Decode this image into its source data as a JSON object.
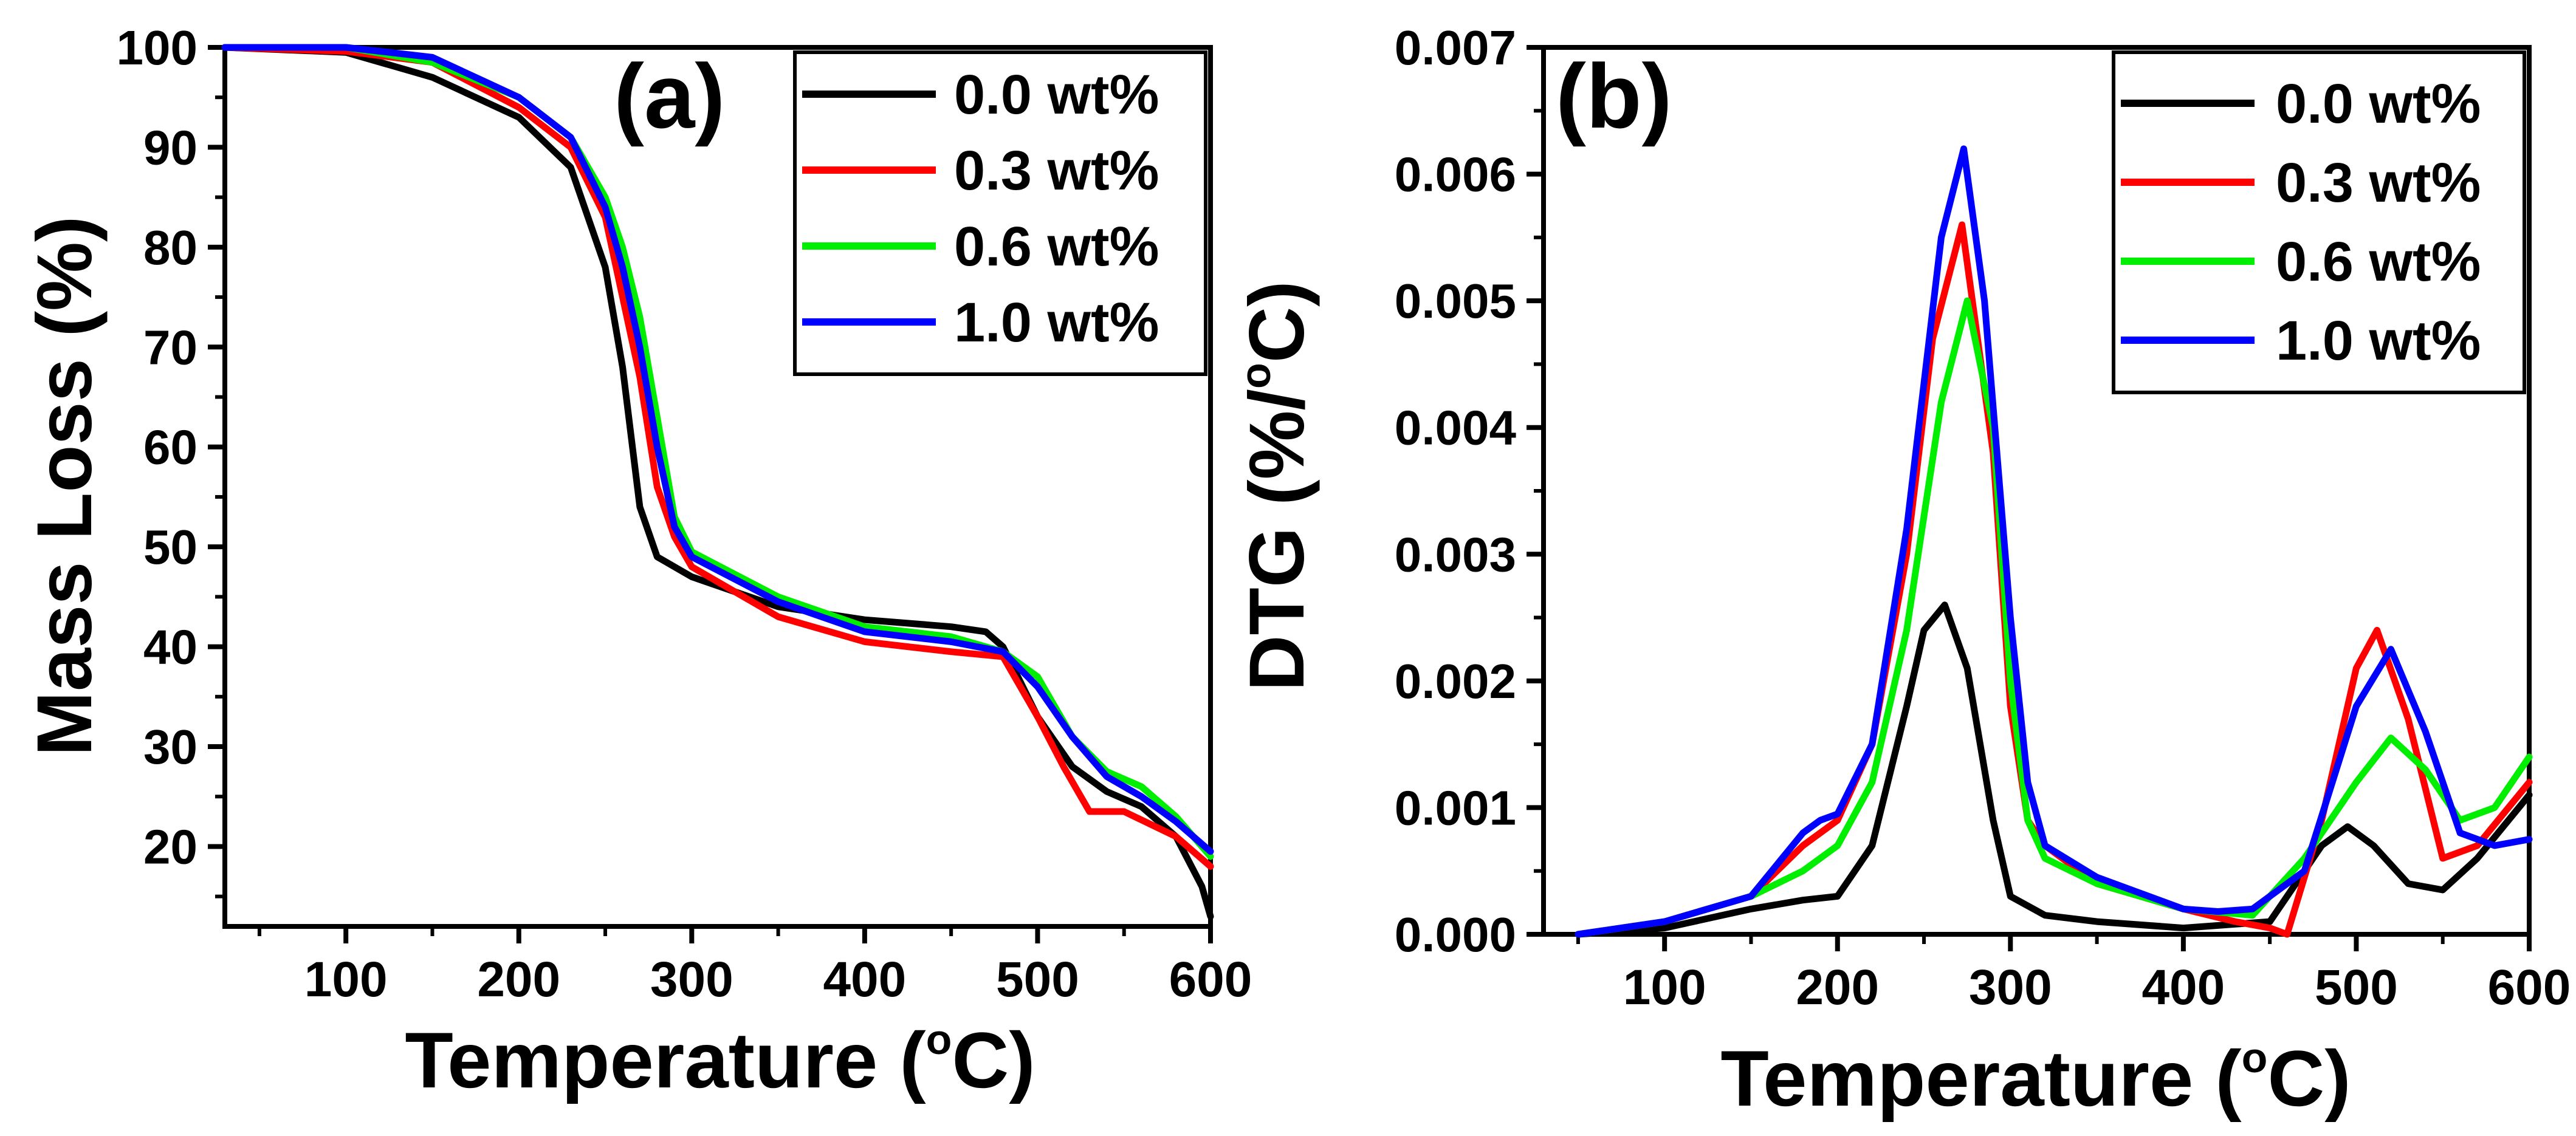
{
  "chart_data": [
    {
      "id": "a",
      "type": "line",
      "panel_label": "(a)",
      "xlabel": "Temperature (",
      "xlabel_unit": "C)",
      "ylabel": "Mass Loss (%)",
      "xlim": [
        30,
        600
      ],
      "ylim": [
        12,
        100
      ],
      "xticks": [
        100,
        200,
        300,
        400,
        500,
        600
      ],
      "xtick_labels": [
        "100",
        "200",
        "300",
        "400",
        "500",
        "600"
      ],
      "yticks": [
        20,
        30,
        40,
        50,
        60,
        70,
        80,
        90,
        100
      ],
      "ytick_labels": [
        "20",
        "30",
        "40",
        "50",
        "60",
        "70",
        "80",
        "90",
        "100"
      ],
      "legend_position": "top-right",
      "series": [
        {
          "name": "0.0 wt%",
          "color": "#000000",
          "x": [
            30,
            100,
            150,
            200,
            230,
            250,
            260,
            270,
            280,
            300,
            350,
            400,
            450,
            470,
            480,
            500,
            520,
            540,
            560,
            580,
            595,
            600
          ],
          "y": [
            100,
            99.5,
            97,
            93,
            88,
            78,
            68,
            54,
            49,
            47,
            44,
            42.7,
            42,
            41.5,
            40,
            33,
            28,
            25.5,
            24,
            21,
            16,
            13
          ]
        },
        {
          "name": "0.3 wt%",
          "color": "#ff0000",
          "x": [
            30,
            100,
            150,
            200,
            230,
            250,
            260,
            270,
            280,
            290,
            300,
            350,
            400,
            450,
            480,
            500,
            515,
            530,
            550,
            580,
            600
          ],
          "y": [
            100,
            99.6,
            98.5,
            94,
            90,
            83,
            75,
            67,
            56,
            51,
            48,
            43,
            40.5,
            39.5,
            39,
            33,
            28,
            23.5,
            23.5,
            21,
            18
          ]
        },
        {
          "name": "0.6 wt%",
          "color": "#00ee00",
          "x": [
            30,
            100,
            150,
            200,
            230,
            250,
            260,
            270,
            280,
            290,
            300,
            350,
            400,
            450,
            480,
            500,
            520,
            540,
            560,
            580,
            600
          ],
          "y": [
            100,
            100,
            98.5,
            95,
            91,
            85,
            80,
            73,
            63,
            53,
            49.5,
            45,
            42,
            41,
            39.5,
            37,
            31,
            27.5,
            26,
            23,
            19
          ]
        },
        {
          "name": "1.0 wt%",
          "color": "#0000ff",
          "x": [
            30,
            100,
            150,
            200,
            230,
            250,
            260,
            270,
            280,
            290,
            300,
            350,
            400,
            450,
            480,
            500,
            520,
            540,
            560,
            580,
            600
          ],
          "y": [
            100,
            100,
            99,
            95,
            91,
            84,
            78,
            70,
            60,
            52,
            49,
            44.5,
            41.5,
            40.5,
            39.5,
            36,
            31,
            27,
            25,
            22.5,
            19.5
          ]
        }
      ]
    },
    {
      "id": "b",
      "type": "line",
      "panel_label": "(b)",
      "xlabel": "Temperature (",
      "xlabel_unit": "C)",
      "ylabel": "DTG (%/",
      "ylabel_unit": "C)",
      "xlim": [
        30,
        600
      ],
      "ylim": [
        0,
        0.007
      ],
      "xticks": [
        100,
        200,
        300,
        400,
        500,
        600
      ],
      "xtick_labels": [
        "100",
        "200",
        "300",
        "400",
        "500",
        "600"
      ],
      "yticks": [
        0,
        0.001,
        0.002,
        0.003,
        0.004,
        0.005,
        0.006,
        0.007
      ],
      "ytick_labels": [
        "0.000",
        "0.001",
        "0.002",
        "0.003",
        "0.004",
        "0.005",
        "0.006",
        "0.007"
      ],
      "legend_position": "top-right",
      "series": [
        {
          "name": "0.0 wt%",
          "color": "#000000",
          "x": [
            50,
            100,
            150,
            180,
            200,
            220,
            240,
            250,
            262,
            275,
            290,
            300,
            320,
            350,
            400,
            450,
            480,
            495,
            510,
            530,
            550,
            570,
            600
          ],
          "y": [
            0,
            5e-05,
            0.0002,
            0.00027,
            0.0003,
            0.0007,
            0.0018,
            0.0024,
            0.0026,
            0.0021,
            0.0009,
            0.0003,
            0.00015,
            0.0001,
            5e-05,
            0.0001,
            0.0007,
            0.00085,
            0.0007,
            0.0004,
            0.00035,
            0.0006,
            0.0011
          ]
        },
        {
          "name": "0.3 wt%",
          "color": "#ff0000",
          "x": [
            50,
            100,
            150,
            180,
            200,
            220,
            240,
            255,
            272,
            290,
            300,
            310,
            320,
            350,
            400,
            430,
            450,
            460,
            480,
            500,
            512,
            530,
            550,
            570,
            600
          ],
          "y": [
            0,
            0.0001,
            0.0003,
            0.0007,
            0.0009,
            0.0015,
            0.003,
            0.0047,
            0.0056,
            0.0038,
            0.0018,
            0.0009,
            0.0007,
            0.0004,
            0.0002,
            0.0001,
            5e-05,
            0,
            0.0009,
            0.0021,
            0.0024,
            0.0017,
            0.0006,
            0.0007,
            0.0012
          ]
        },
        {
          "name": "0.6 wt%",
          "color": "#00ee00",
          "x": [
            50,
            100,
            150,
            180,
            200,
            220,
            240,
            260,
            275,
            290,
            300,
            310,
            320,
            350,
            400,
            440,
            470,
            500,
            520,
            540,
            560,
            580,
            600
          ],
          "y": [
            0,
            0.0001,
            0.0003,
            0.0005,
            0.0007,
            0.0012,
            0.0024,
            0.0042,
            0.005,
            0.004,
            0.002,
            0.0009,
            0.0006,
            0.0004,
            0.0002,
            0.00015,
            0.0006,
            0.0012,
            0.00155,
            0.0013,
            0.0009,
            0.001,
            0.0014
          ]
        },
        {
          "name": "1.0 wt%",
          "color": "#0000ff",
          "x": [
            50,
            100,
            150,
            180,
            190,
            200,
            220,
            240,
            260,
            273,
            285,
            300,
            310,
            320,
            350,
            400,
            420,
            440,
            470,
            500,
            520,
            540,
            560,
            580,
            600
          ],
          "y": [
            0,
            0.0001,
            0.0003,
            0.0008,
            0.0009,
            0.00095,
            0.0015,
            0.0032,
            0.0055,
            0.0062,
            0.005,
            0.0025,
            0.0012,
            0.0007,
            0.00045,
            0.0002,
            0.00018,
            0.0002,
            0.0005,
            0.0018,
            0.00225,
            0.0016,
            0.0008,
            0.0007,
            0.00075
          ]
        }
      ]
    }
  ]
}
